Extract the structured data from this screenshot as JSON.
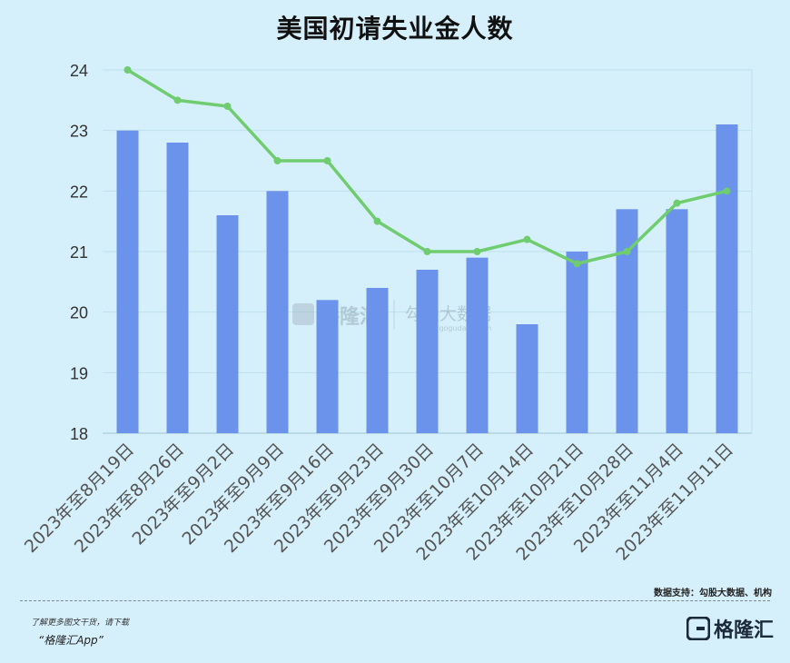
{
  "chart_data": {
    "type": "bar",
    "title": "美国初请失业金人数",
    "categories": [
      "2023年至8月19日",
      "2023年至8月26日",
      "2023年至9月2日",
      "2023年至9月9日",
      "2023年至9月16日",
      "2023年至9月23日",
      "2023年至9月30日",
      "2023年至10月7日",
      "2023年至10月14日",
      "2023年至10月21日",
      "2023年至10月28日",
      "2023年至11月4日",
      "2023年至11月11日"
    ],
    "series": [
      {
        "type": "bar",
        "color": "#6b93ec",
        "values": [
          23.0,
          22.8,
          21.6,
          22.0,
          20.2,
          20.4,
          20.7,
          20.9,
          19.8,
          21.0,
          21.7,
          21.7,
          23.1
        ]
      },
      {
        "type": "line",
        "color": "#6fcc6f",
        "values": [
          24.0,
          23.5,
          23.4,
          22.5,
          22.5,
          21.5,
          21.0,
          21.0,
          21.2,
          20.8,
          21.0,
          21.8,
          22.0
        ]
      }
    ],
    "ylim": [
      18,
      24
    ],
    "yticks": [
      18,
      19,
      20,
      21,
      22,
      23,
      24
    ],
    "grid": true
  },
  "watermark": {
    "left": "格隆汇",
    "right": "勾股大数据",
    "url": "www.gogudata.com"
  },
  "footer": {
    "source": "数据支持：勾股大数据、机构",
    "promo_line": "了解更多图文干货，请下载",
    "promo_app": "“格隆汇App”",
    "logo_text": "格隆汇"
  }
}
